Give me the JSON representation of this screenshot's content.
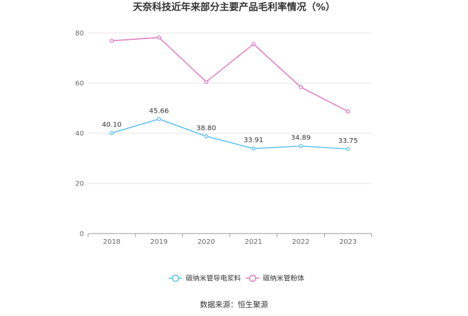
{
  "chart_data": {
    "type": "line",
    "title": "天奈科技近年来部分主要产品毛利率情况（%）",
    "categories": [
      "2018",
      "2019",
      "2020",
      "2021",
      "2022",
      "2023"
    ],
    "ylim": [
      0,
      80
    ],
    "yticks": [
      "0",
      "20",
      "40",
      "60",
      "80"
    ],
    "grid": true,
    "legend_position": "bottom",
    "series": [
      {
        "name": "碳纳米管导电浆料",
        "color": "#5bc0f0",
        "values": [
          40.1,
          45.66,
          38.8,
          33.91,
          34.89,
          33.75
        ],
        "labels": [
          "40.10",
          "45.66",
          "38.80",
          "33.91",
          "34.89",
          "33.75"
        ]
      },
      {
        "name": "碳纳米管粉体",
        "color": "#e079c0",
        "values": [
          76.9,
          78.2,
          60.5,
          75.6,
          58.4,
          48.7
        ]
      }
    ],
    "source": "数据来源：恒生聚源"
  }
}
